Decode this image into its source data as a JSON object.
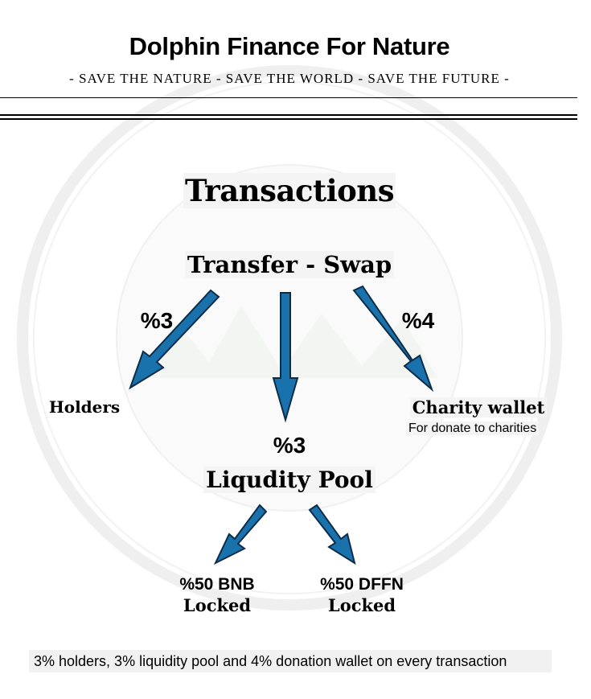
{
  "header": {
    "title": "Dolphin Finance For Nature",
    "subtitle": "- SAVE THE NATURE - SAVE THE WORLD - SAVE THE FUTURE -"
  },
  "diagram": {
    "heading": "Transactions",
    "source": "Transfer - Swap",
    "holders": {
      "percent": "%3",
      "label": "Holders"
    },
    "liquidity": {
      "percent": "%3",
      "label": "Liqudity Pool"
    },
    "charity": {
      "percent": "%4",
      "label": "Charity wallet",
      "note": "For donate to charities"
    },
    "bnb": {
      "label": "%50 BNB",
      "status": "Locked"
    },
    "dffn": {
      "label": "%50 DFFN",
      "status": "Locked"
    }
  },
  "footer": {
    "text": "3% holders, 3% liquidity pool and 4% donation wallet on every transaction"
  },
  "colors": {
    "arrow_fill": "#1a72ad",
    "arrow_stroke": "#0b2d4a",
    "watermark": "#ececec"
  }
}
